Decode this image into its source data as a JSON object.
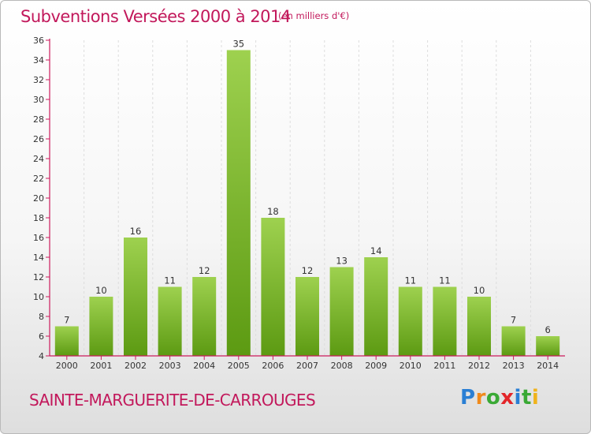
{
  "header": {
    "title": "Subventions Versées 2000 à 2014",
    "subtitle": "(en milliers d'€)"
  },
  "footer": {
    "commune": "SAINTE-MARGUERITE-DE-CARROUGES",
    "logo": {
      "letters": [
        "P",
        "r",
        "o",
        "x",
        "i",
        "t",
        "i"
      ],
      "colors": [
        "#2a7fd4",
        "#f08a1c",
        "#3aa935",
        "#e3262a",
        "#2a7fd4",
        "#3aa935",
        "#f0b31c"
      ]
    }
  },
  "colors": {
    "accent": "#c2185b",
    "bar_light": "#9ed14f",
    "bar_dark": "#5c9a12",
    "axis": "#cc1b5c",
    "grid": "#dddddd"
  },
  "chart_data": {
    "type": "bar",
    "title": "Subventions Versées 2000 à 2014",
    "subtitle": "(en milliers d'€)",
    "categories": [
      "2000",
      "2001",
      "2002",
      "2003",
      "2004",
      "2005",
      "2006",
      "2007",
      "2008",
      "2009",
      "2010",
      "2011",
      "2012",
      "2013",
      "2014"
    ],
    "values": [
      7,
      10,
      16,
      11,
      12,
      35,
      18,
      12,
      13,
      14,
      11,
      11,
      10,
      7,
      6
    ],
    "ylim": [
      4,
      36
    ],
    "yticks": [
      4,
      6,
      8,
      10,
      12,
      14,
      16,
      18,
      20,
      22,
      24,
      26,
      28,
      30,
      32,
      34,
      36
    ],
    "grid": true,
    "xlabel": "",
    "ylabel": ""
  }
}
